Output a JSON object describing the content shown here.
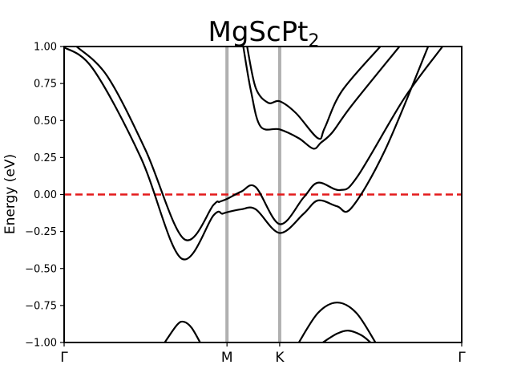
{
  "chart_data": {
    "type": "line",
    "title_main": "MgScPt",
    "title_sub": "2",
    "xlabel": "",
    "ylabel": "Energy (eV)",
    "ylim": [
      -1.0,
      1.0
    ],
    "xlim": [
      0.0,
      4.15
    ],
    "y_ticks": [
      1.0,
      0.75,
      0.5,
      0.25,
      0.0,
      -0.25,
      -0.5,
      -0.75,
      -1.0
    ],
    "y_tick_labels": [
      "1.00",
      "0.75",
      "0.50",
      "0.25",
      "0.00",
      "−0.25",
      "−0.50",
      "−0.75",
      "−1.00"
    ],
    "kpoints": [
      {
        "label": "Γ",
        "x": 0.0
      },
      {
        "label": "M",
        "x": 1.7
      },
      {
        "label": "K",
        "x": 2.25
      },
      {
        "label": "Γ",
        "x": 4.15
      }
    ],
    "fermi_level": 0.0,
    "colors": {
      "bands": "#000000",
      "fermi": "#e41a1c",
      "kline": "#b0b0b0"
    },
    "series": [
      {
        "x": [
          0.13,
          0.45,
          0.85,
          1.25,
          1.56,
          1.62,
          1.7,
          1.85,
          2.0,
          2.25,
          2.5,
          2.65,
          2.88,
          3.06,
          3.55,
          3.95
        ],
        "values": [
          1.0,
          0.8,
          0.3,
          -0.3,
          -0.07,
          -0.05,
          -0.03,
          0.02,
          0.05,
          -0.2,
          -0.02,
          0.08,
          0.03,
          0.12,
          0.65,
          1.0
        ]
      },
      {
        "x": [
          -0.02,
          0.3,
          0.8,
          1.22,
          1.56,
          1.65,
          1.7,
          1.85,
          2.0,
          2.25,
          2.5,
          2.65,
          2.85,
          3.0,
          3.35,
          3.8
        ],
        "values": [
          1.0,
          0.85,
          0.25,
          -0.43,
          -0.14,
          -0.13,
          -0.12,
          -0.1,
          -0.1,
          -0.26,
          -0.13,
          -0.04,
          -0.08,
          -0.09,
          0.3,
          1.0
        ]
      },
      {
        "x": [
          1.91,
          2.0,
          2.13,
          2.25,
          2.42,
          2.65,
          2.72,
          2.9,
          3.3
        ],
        "values": [
          1.0,
          0.72,
          0.62,
          0.63,
          0.55,
          0.38,
          0.45,
          0.7,
          1.0
        ]
      },
      {
        "x": [
          1.87,
          1.95,
          2.05,
          2.25,
          2.45,
          2.6,
          2.68,
          2.8,
          3.0,
          3.5
        ],
        "values": [
          1.0,
          0.7,
          0.46,
          0.44,
          0.38,
          0.31,
          0.35,
          0.42,
          0.6,
          1.0
        ]
      },
      {
        "x": [
          1.05,
          1.18,
          1.25,
          1.33,
          1.42
        ],
        "values": [
          -1.0,
          -0.88,
          -0.86,
          -0.9,
          -1.0
        ]
      },
      {
        "x": [
          2.45,
          2.65,
          2.85,
          3.05,
          3.25
        ],
        "values": [
          -1.0,
          -0.8,
          -0.73,
          -0.8,
          -1.0
        ]
      },
      {
        "x": [
          2.7,
          2.85,
          2.97,
          3.1,
          3.2
        ],
        "values": [
          -1.0,
          -0.94,
          -0.92,
          -0.95,
          -1.0
        ]
      }
    ]
  }
}
